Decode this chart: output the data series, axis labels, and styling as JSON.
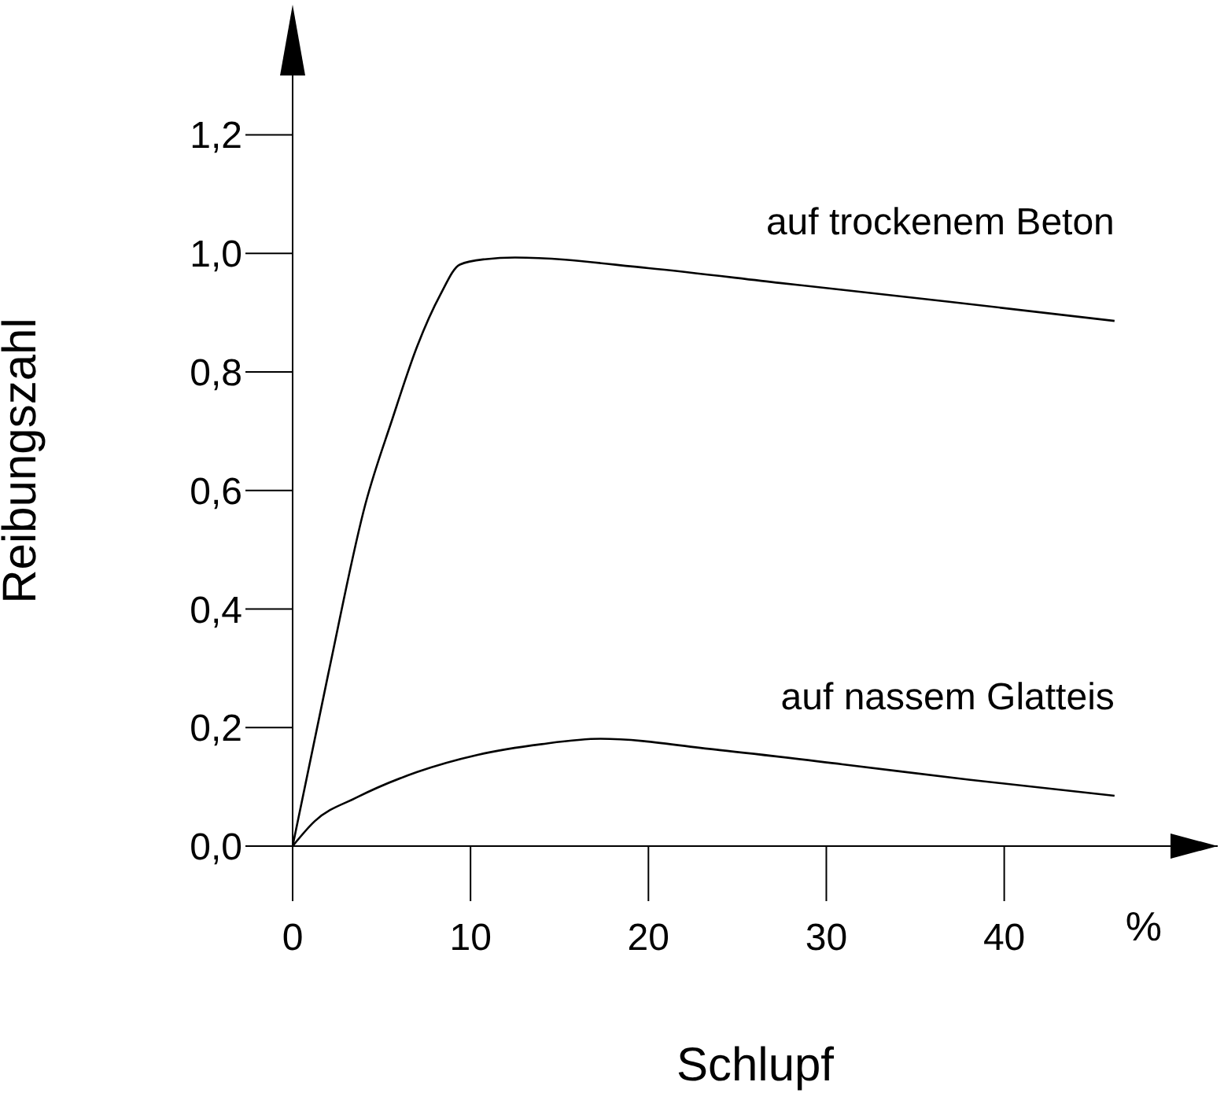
{
  "chart_data": {
    "type": "line",
    "xlabel": "Schlupf",
    "ylabel": "Reibungszahl",
    "annotations": [
      "%"
    ],
    "xlim": [
      0,
      52
    ],
    "xticks": [
      0,
      10,
      20,
      30,
      40
    ],
    "ylim": [
      0,
      1.3
    ],
    "yticks": [
      {
        "value": 0,
        "label": "0,0"
      },
      {
        "value": 0.2,
        "label": "0,2"
      },
      {
        "value": 0.4,
        "label": "0,4"
      },
      {
        "value": 0.6,
        "label": "0,6"
      },
      {
        "value": 0.8,
        "label": "0,8"
      },
      {
        "value": 1.0,
        "label": "1,0"
      },
      {
        "value": 1.2,
        "label": "1,2"
      }
    ],
    "grid": false,
    "legend": false,
    "marker": "none",
    "line_style": "solid",
    "series": [
      {
        "name": "auf trockenem Beton",
        "color": "#000000",
        "x": [
          0,
          2,
          4.1,
          5.6,
          7,
          8.3,
          9.4,
          10.8,
          12.5,
          20,
          27.4,
          37,
          46.2
        ],
        "values": [
          0,
          0.29,
          0.578,
          0.72,
          0.843,
          0.93,
          0.981,
          0.99,
          0.993,
          0.975,
          0.95,
          0.918,
          0.886
        ]
      },
      {
        "name": "auf nassem Glatteis",
        "color": "#000000",
        "x": [
          0,
          1.24,
          3.6,
          7,
          10.4,
          14,
          17.3,
          24,
          30.9,
          38,
          46.2
        ],
        "values": [
          0,
          0.042,
          0.082,
          0.125,
          0.154,
          0.172,
          0.181,
          0.162,
          0.138,
          0.112,
          0.085
        ]
      }
    ]
  }
}
